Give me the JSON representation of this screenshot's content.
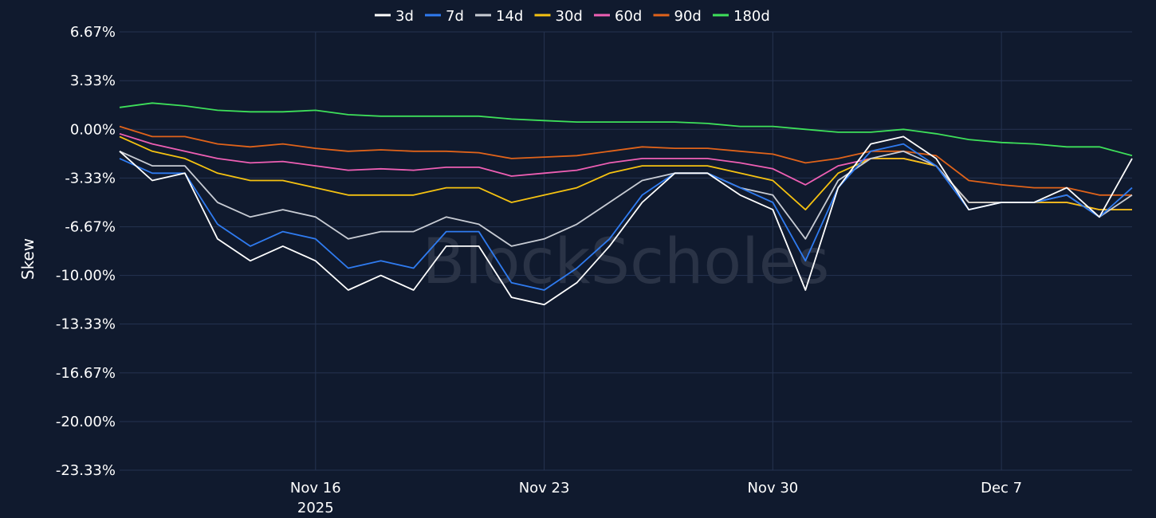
{
  "watermark": "BlockScholes",
  "chart_data": {
    "type": "line",
    "title": "",
    "xlabel": "",
    "ylabel": "Skew",
    "ylim": [
      -23.33,
      6.67
    ],
    "y_ticks": [
      6.67,
      3.33,
      0.0,
      -3.33,
      -6.67,
      -10.0,
      -13.33,
      -16.67,
      -20.0,
      -23.33
    ],
    "y_tick_labels": [
      "6.67%",
      "3.33%",
      "0.00%",
      "-3.33%",
      "-6.67%",
      "-10.00%",
      "-13.33%",
      "-16.67%",
      "-20.00%",
      "-23.33%"
    ],
    "xlim": [
      "2025-11-10",
      "2025-12-11"
    ],
    "x_ticks": [
      {
        "date": "2025-11-16",
        "label": "Nov 16",
        "sublabel": "2025"
      },
      {
        "date": "2025-11-23",
        "label": "Nov 23",
        "sublabel": ""
      },
      {
        "date": "2025-11-30",
        "label": "Nov 30",
        "sublabel": ""
      },
      {
        "date": "2025-12-07",
        "label": "Dec 7",
        "sublabel": ""
      }
    ],
    "grid": true,
    "legend_position": "top-center",
    "x": [
      "2025-11-10",
      "2025-11-11",
      "2025-11-12",
      "2025-11-13",
      "2025-11-14",
      "2025-11-15",
      "2025-11-16",
      "2025-11-17",
      "2025-11-18",
      "2025-11-19",
      "2025-11-20",
      "2025-11-21",
      "2025-11-22",
      "2025-11-23",
      "2025-11-24",
      "2025-11-25",
      "2025-11-26",
      "2025-11-27",
      "2025-11-28",
      "2025-11-29",
      "2025-11-30",
      "2025-12-01",
      "2025-12-02",
      "2025-12-03",
      "2025-12-04",
      "2025-12-05",
      "2025-12-06",
      "2025-12-07",
      "2025-12-08",
      "2025-12-09",
      "2025-12-10",
      "2025-12-11"
    ],
    "series": [
      {
        "name": "3d",
        "color": "#ffffff",
        "values": [
          -1.5,
          -3.5,
          -3.0,
          -7.5,
          -9.0,
          -8.0,
          -9.0,
          -11.0,
          -10.0,
          -11.0,
          -8.0,
          -8.0,
          -11.5,
          -12.0,
          -10.5,
          -8.0,
          -5.0,
          -3.0,
          -3.0,
          -4.5,
          -5.5,
          -11.0,
          -4.0,
          -1.0,
          -0.5,
          -2.0,
          -5.5,
          -5.0,
          -5.0,
          -4.0,
          -6.0,
          -2.0
        ]
      },
      {
        "name": "7d",
        "color": "#2f7bf0",
        "values": [
          -2.0,
          -3.0,
          -3.0,
          -6.5,
          -8.0,
          -7.0,
          -7.5,
          -9.5,
          -9.0,
          -9.5,
          -7.0,
          -7.0,
          -10.5,
          -11.0,
          -9.5,
          -7.5,
          -4.5,
          -3.0,
          -3.0,
          -4.0,
          -5.0,
          -9.0,
          -4.0,
          -1.5,
          -1.0,
          -2.5,
          -5.5,
          -5.0,
          -5.0,
          -4.5,
          -6.0,
          -4.0
        ]
      },
      {
        "name": "14d",
        "color": "#c8ccd4",
        "values": [
          -1.5,
          -2.5,
          -2.5,
          -5.0,
          -6.0,
          -5.5,
          -6.0,
          -7.5,
          -7.0,
          -7.0,
          -6.0,
          -6.5,
          -8.0,
          -7.5,
          -6.5,
          -5.0,
          -3.5,
          -3.0,
          -3.0,
          -4.0,
          -4.5,
          -7.5,
          -3.5,
          -2.0,
          -1.5,
          -2.5,
          -5.0,
          -5.0,
          -5.0,
          -4.5,
          -6.0,
          -4.5
        ]
      },
      {
        "name": "30d",
        "color": "#f5c211",
        "values": [
          -0.5,
          -1.5,
          -2.0,
          -3.0,
          -3.5,
          -3.5,
          -4.0,
          -4.5,
          -4.5,
          -4.5,
          -4.0,
          -4.0,
          -5.0,
          -4.5,
          -4.0,
          -3.0,
          -2.5,
          -2.5,
          -2.5,
          -3.0,
          -3.5,
          -5.5,
          -3.0,
          -2.0,
          -2.0,
          -2.5,
          -5.0,
          -5.0,
          -5.0,
          -5.0,
          -5.5,
          -5.5
        ]
      },
      {
        "name": "60d",
        "color": "#ee5fb4",
        "values": [
          -0.3,
          -1.0,
          -1.5,
          -2.0,
          -2.3,
          -2.2,
          -2.5,
          -2.8,
          -2.7,
          -2.8,
          -2.6,
          -2.6,
          -3.2,
          -3.0,
          -2.8,
          -2.3,
          -2.0,
          -2.0,
          -2.0,
          -2.3,
          -2.7,
          -3.8,
          -2.5,
          -2.0,
          -2.0,
          -2.5,
          -5.0,
          -5.0,
          -5.0,
          -5.0,
          -5.5,
          -5.5
        ]
      },
      {
        "name": "90d",
        "color": "#e0631a",
        "values": [
          0.2,
          -0.5,
          -0.5,
          -1.0,
          -1.2,
          -1.0,
          -1.3,
          -1.5,
          -1.4,
          -1.5,
          -1.5,
          -1.6,
          -2.0,
          -1.9,
          -1.8,
          -1.5,
          -1.2,
          -1.3,
          -1.3,
          -1.5,
          -1.7,
          -2.3,
          -2.0,
          -1.5,
          -1.5,
          -1.8,
          -3.5,
          -3.8,
          -4.0,
          -4.0,
          -4.5,
          -4.5
        ]
      },
      {
        "name": "180d",
        "color": "#3ee05a",
        "values": [
          1.5,
          1.8,
          1.6,
          1.3,
          1.2,
          1.2,
          1.3,
          1.0,
          0.9,
          0.9,
          0.9,
          0.9,
          0.7,
          0.6,
          0.5,
          0.5,
          0.5,
          0.5,
          0.4,
          0.2,
          0.2,
          0.0,
          -0.2,
          -0.2,
          0.0,
          -0.3,
          -0.7,
          -0.9,
          -1.0,
          -1.2,
          -1.2,
          -1.8
        ]
      }
    ]
  }
}
